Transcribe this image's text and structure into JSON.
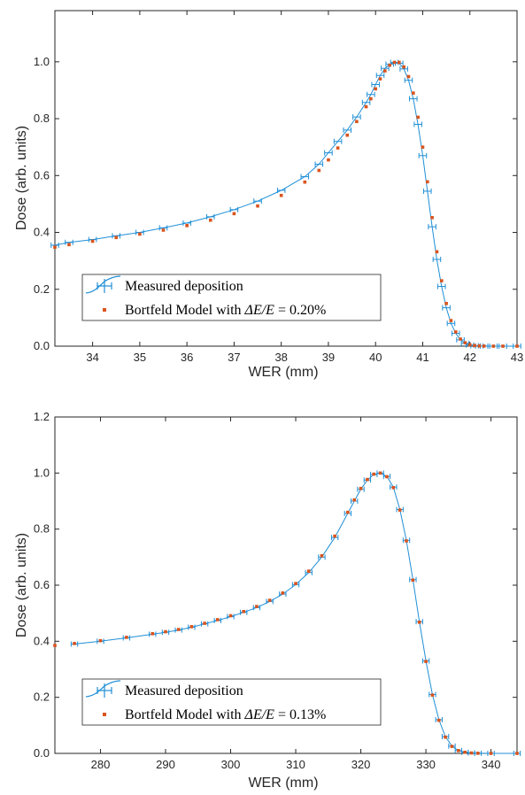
{
  "chart_data": [
    {
      "type": "scatter",
      "title": "",
      "xlabel": "WER (mm)",
      "ylabel": "Dose (arb. units)",
      "xlim": [
        33.2,
        43.0
      ],
      "ylim": [
        0,
        1.18
      ],
      "xticks": [
        "34",
        "35",
        "36",
        "37",
        "38",
        "39",
        "40",
        "41",
        "42",
        "43"
      ],
      "yticks": [
        "0.0",
        "0.2",
        "0.4",
        "0.6",
        "0.8",
        "1.0"
      ],
      "grid": false,
      "legend_position": "bottom-left",
      "series": [
        {
          "name": "Measured deposition",
          "color": "#1f8fd6",
          "marker": "errorbar",
          "x": [
            33.2,
            33.5,
            34.0,
            34.5,
            35.0,
            35.5,
            36.0,
            36.5,
            37.0,
            37.5,
            38.0,
            38.5,
            38.8,
            39.0,
            39.2,
            39.4,
            39.6,
            39.8,
            39.9,
            40.0,
            40.1,
            40.2,
            40.3,
            40.4,
            40.5,
            40.6,
            40.7,
            40.8,
            40.9,
            41.0,
            41.1,
            41.2,
            41.3,
            41.4,
            41.5,
            41.6,
            41.7,
            41.8,
            41.9,
            42.0,
            42.1,
            42.2,
            42.3,
            42.5,
            42.7,
            43.0
          ],
          "y": [
            0.355,
            0.365,
            0.375,
            0.388,
            0.4,
            0.416,
            0.433,
            0.455,
            0.48,
            0.51,
            0.548,
            0.596,
            0.64,
            0.68,
            0.72,
            0.76,
            0.806,
            0.857,
            0.885,
            0.92,
            0.952,
            0.977,
            0.992,
            0.998,
            0.995,
            0.975,
            0.935,
            0.87,
            0.78,
            0.67,
            0.545,
            0.42,
            0.305,
            0.21,
            0.135,
            0.08,
            0.045,
            0.022,
            0.01,
            0.004,
            0.0015,
            0.0005,
            0.0002,
            0.0,
            0.0,
            0.0
          ],
          "xerr": 0.08
        },
        {
          "name": "Bortfeld Model with ΔE/E = 0.20%",
          "color": "#d9541e",
          "marker": "square",
          "x": [
            33.2,
            33.5,
            34.0,
            34.5,
            35.0,
            35.5,
            36.0,
            36.5,
            37.0,
            37.5,
            38.0,
            38.5,
            38.8,
            39.0,
            39.2,
            39.4,
            39.6,
            39.8,
            39.9,
            40.0,
            40.1,
            40.2,
            40.3,
            40.4,
            40.5,
            40.6,
            40.7,
            40.8,
            40.9,
            41.0,
            41.1,
            41.2,
            41.3,
            41.4,
            41.5,
            41.6,
            41.7,
            41.8,
            41.9,
            42.0,
            42.1,
            42.2,
            42.3,
            42.5,
            42.7,
            43.0
          ],
          "y": [
            0.348,
            0.357,
            0.369,
            0.382,
            0.394,
            0.408,
            0.424,
            0.443,
            0.466,
            0.493,
            0.53,
            0.577,
            0.618,
            0.655,
            0.697,
            0.742,
            0.79,
            0.842,
            0.87,
            0.905,
            0.94,
            0.968,
            0.988,
            0.998,
            0.998,
            0.982,
            0.948,
            0.89,
            0.805,
            0.7,
            0.578,
            0.452,
            0.332,
            0.23,
            0.15,
            0.09,
            0.05,
            0.025,
            0.012,
            0.005,
            0.002,
            0.0008,
            0.0003,
            0.0,
            0.0,
            0.0
          ]
        }
      ],
      "legend": {
        "measured_label": "Measured deposition",
        "model_prefix": "Bortfeld Model with ",
        "model_delta": "ΔE/E",
        "model_value": " = 0.20%"
      }
    },
    {
      "type": "scatter",
      "title": "",
      "xlabel": "WER (mm)",
      "ylabel": "Dose (arb. units)",
      "xlim": [
        273.0,
        344.0
      ],
      "ylim": [
        0,
        1.2
      ],
      "xticks": [
        "280",
        "290",
        "300",
        "310",
        "320",
        "330",
        "340"
      ],
      "yticks": [
        "0.0",
        "0.2",
        "0.4",
        "0.6",
        "0.8",
        "1.0",
        "1.2"
      ],
      "grid": false,
      "legend_position": "bottom-left",
      "series": [
        {
          "name": "Measured deposition",
          "color": "#1f8fd6",
          "marker": "errorbar",
          "x": [
            276,
            280,
            284,
            288,
            290,
            292,
            294,
            296,
            298,
            300,
            302,
            304,
            306,
            308,
            310,
            312,
            314,
            316,
            318,
            319,
            320,
            321,
            322,
            323,
            324,
            325,
            326,
            327,
            328,
            329,
            330,
            331,
            332,
            333,
            334,
            335,
            336,
            337,
            338,
            340,
            344
          ],
          "y": [
            0.39,
            0.4,
            0.412,
            0.425,
            0.432,
            0.44,
            0.45,
            0.462,
            0.474,
            0.488,
            0.503,
            0.52,
            0.542,
            0.568,
            0.602,
            0.645,
            0.7,
            0.77,
            0.856,
            0.9,
            0.942,
            0.975,
            0.995,
            1.0,
            0.988,
            0.95,
            0.87,
            0.76,
            0.62,
            0.47,
            0.33,
            0.21,
            0.12,
            0.06,
            0.026,
            0.01,
            0.004,
            0.0015,
            0.0005,
            0.0,
            0.0
          ],
          "xerr": 0.5
        },
        {
          "name": "Bortfeld Model with ΔE/E = 0.13%",
          "color": "#d9541e",
          "marker": "square",
          "x": [
            273,
            276,
            280,
            284,
            288,
            290,
            292,
            294,
            296,
            298,
            300,
            302,
            304,
            306,
            308,
            310,
            312,
            314,
            316,
            318,
            319,
            320,
            321,
            322,
            323,
            324,
            325,
            326,
            327,
            328,
            329,
            330,
            331,
            332,
            333,
            334,
            335,
            336,
            337,
            338,
            340,
            344
          ],
          "y": [
            0.385,
            0.392,
            0.402,
            0.414,
            0.427,
            0.434,
            0.442,
            0.452,
            0.464,
            0.477,
            0.491,
            0.506,
            0.524,
            0.546,
            0.572,
            0.606,
            0.65,
            0.705,
            0.775,
            0.86,
            0.904,
            0.945,
            0.977,
            0.996,
            1.0,
            0.987,
            0.948,
            0.868,
            0.758,
            0.618,
            0.468,
            0.328,
            0.208,
            0.118,
            0.058,
            0.025,
            0.01,
            0.004,
            0.0015,
            0.0005,
            0.0,
            0.0
          ]
        }
      ],
      "legend": {
        "measured_label": "Measured deposition",
        "model_prefix": "Bortfeld Model with ",
        "model_delta": "ΔE/E",
        "model_value": " = 0.13%"
      }
    }
  ]
}
